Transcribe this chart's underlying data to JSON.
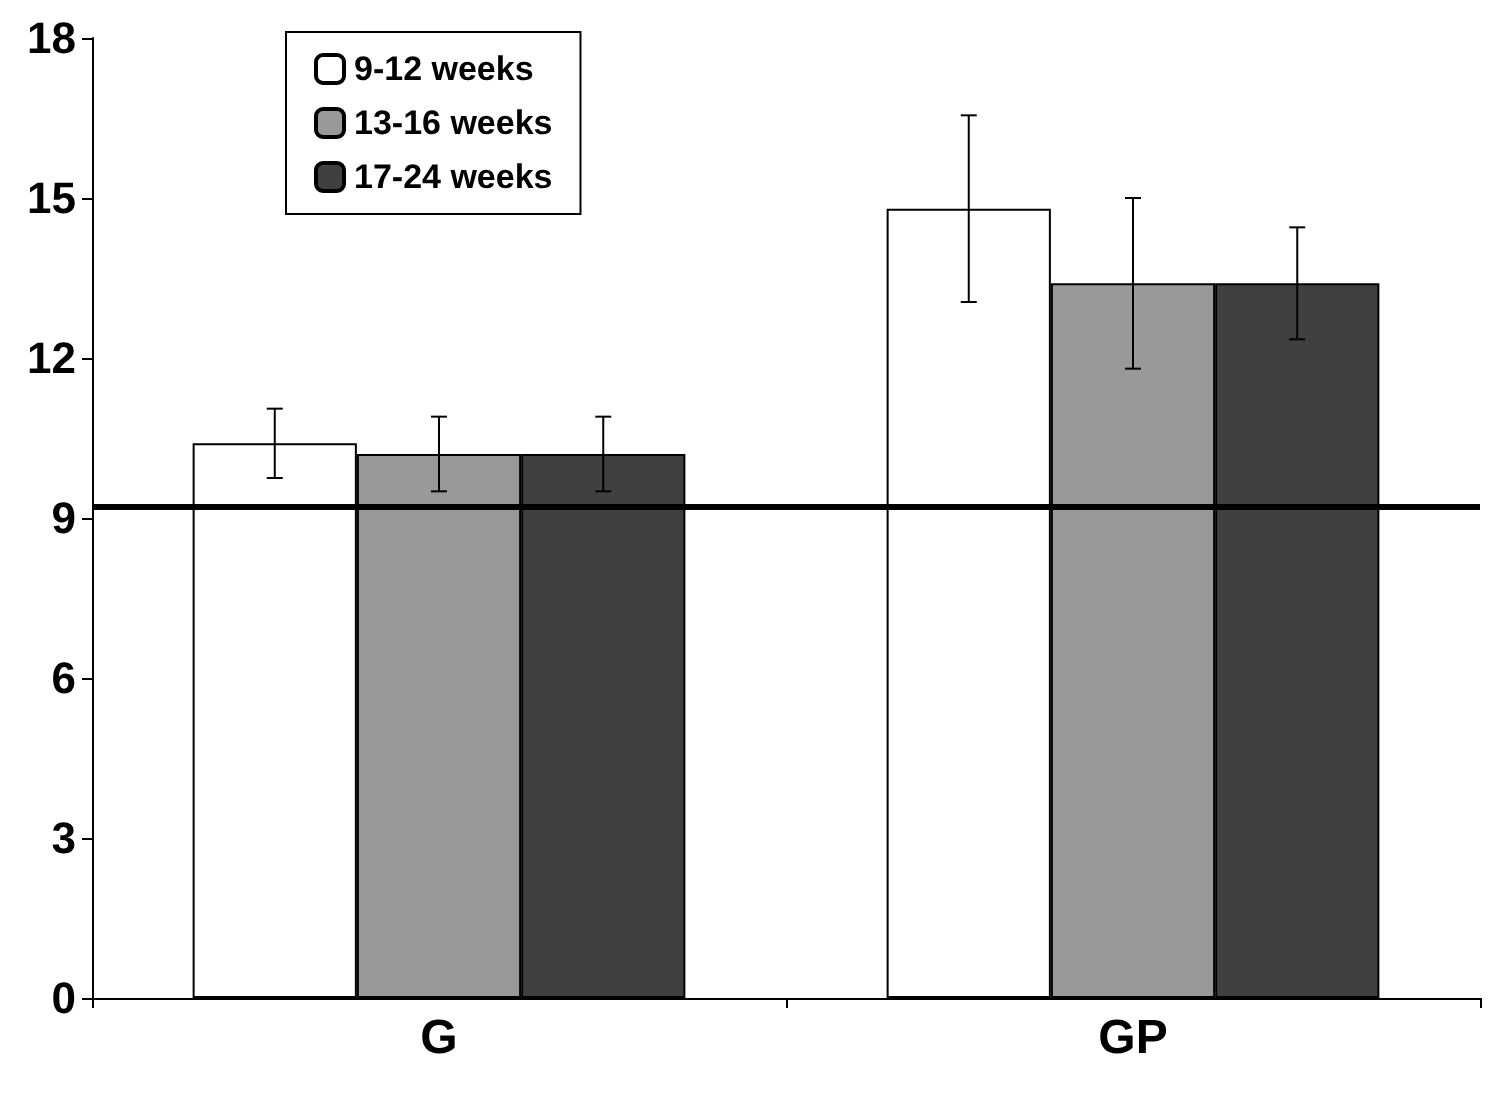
{
  "chart_data": {
    "type": "bar",
    "categories": [
      "G",
      "GP"
    ],
    "series": [
      {
        "name": "9-12 weeks",
        "color": "#ffffff",
        "values": [
          10.4,
          14.8
        ],
        "errors": [
          0.65,
          1.75
        ]
      },
      {
        "name": "13-16 weeks",
        "color": "#999999",
        "values": [
          10.2,
          13.4
        ],
        "errors": [
          0.7,
          1.6
        ]
      },
      {
        "name": "17-24 weeks",
        "color": "#404040",
        "values": [
          10.2,
          13.4
        ],
        "errors": [
          0.7,
          1.05
        ]
      }
    ],
    "ylim": [
      0,
      18
    ],
    "yticks": [
      0,
      3,
      6,
      9,
      12,
      15,
      18
    ],
    "grid": false,
    "legend": "top left",
    "ref_lines": [
      {
        "axis": "y",
        "value": 9.2
      }
    ]
  }
}
